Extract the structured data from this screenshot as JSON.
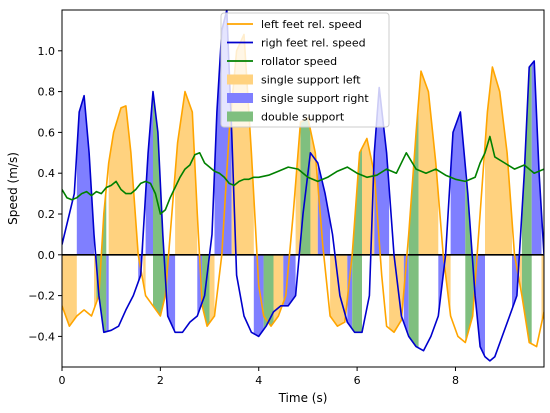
{
  "chart_data": {
    "type": "line",
    "xlabel": "Time (s)",
    "ylabel": "Speed (m/s)",
    "xlim": [
      0,
      9.8
    ],
    "ylim": [
      -0.55,
      1.2
    ],
    "xticks": [
      0,
      2,
      4,
      6,
      8
    ],
    "yticks": [
      -0.4,
      -0.2,
      0.0,
      0.2,
      0.4,
      0.6,
      0.8,
      1.0
    ],
    "xtick_labels": [
      "0",
      "2",
      "4",
      "6",
      "8"
    ],
    "ytick_labels": [
      "−0.4",
      "−0.2",
      "0.0",
      "0.2",
      "0.4",
      "0.6",
      "0.8",
      "1.0"
    ],
    "grid": false,
    "legend_position": "top-center",
    "zero_line": 0.0,
    "colors": {
      "left": "#ffa500",
      "right": "#0000cd",
      "rollator": "#008000",
      "single_left_fill": "#ffd27f",
      "single_right_fill": "#7f7fff",
      "double_fill": "#7fbf7f"
    },
    "series": [
      {
        "name": "left feet rel. speed",
        "x": [
          0.0,
          0.15,
          0.3,
          0.45,
          0.6,
          0.75,
          0.85,
          0.95,
          1.05,
          1.2,
          1.3,
          1.4,
          1.55,
          1.7,
          1.85,
          2.0,
          2.1,
          2.2,
          2.35,
          2.5,
          2.65,
          2.75,
          2.85,
          2.95,
          3.1,
          3.25,
          3.4,
          3.55,
          3.7,
          3.85,
          4.0,
          4.1,
          4.25,
          4.4,
          4.55,
          4.7,
          4.85,
          5.0,
          5.15,
          5.3,
          5.45,
          5.6,
          5.75,
          5.9,
          6.05,
          6.2,
          6.35,
          6.5,
          6.6,
          6.75,
          6.9,
          7.05,
          7.2,
          7.3,
          7.45,
          7.6,
          7.75,
          7.9,
          8.05,
          8.2,
          8.35,
          8.5,
          8.65,
          8.75,
          8.9,
          9.05,
          9.2,
          9.35,
          9.5,
          9.65,
          9.8
        ],
        "y": [
          -0.25,
          -0.35,
          -0.3,
          -0.27,
          -0.3,
          -0.2,
          0.2,
          0.45,
          0.6,
          0.72,
          0.73,
          0.5,
          0.0,
          -0.2,
          -0.25,
          -0.3,
          -0.2,
          0.1,
          0.55,
          0.8,
          0.7,
          0.2,
          -0.25,
          -0.35,
          -0.3,
          0.0,
          0.6,
          1.0,
          1.08,
          0.5,
          -0.15,
          -0.3,
          -0.35,
          -0.3,
          -0.2,
          0.2,
          0.65,
          0.67,
          0.5,
          0.05,
          -0.3,
          -0.35,
          -0.33,
          0.0,
          0.5,
          0.57,
          0.4,
          -0.1,
          -0.35,
          -0.38,
          -0.32,
          0.1,
          0.6,
          0.9,
          0.8,
          0.45,
          0.0,
          -0.3,
          -0.4,
          -0.43,
          -0.3,
          0.2,
          0.7,
          0.92,
          0.8,
          0.5,
          0.0,
          -0.2,
          -0.43,
          -0.45,
          -0.28
        ]
      },
      {
        "name": "righ feet rel. speed",
        "x": [
          0.0,
          0.1,
          0.25,
          0.35,
          0.45,
          0.55,
          0.65,
          0.75,
          0.85,
          1.0,
          1.15,
          1.3,
          1.45,
          1.6,
          1.75,
          1.85,
          1.95,
          2.05,
          2.15,
          2.3,
          2.45,
          2.6,
          2.75,
          2.9,
          3.05,
          3.15,
          3.25,
          3.35,
          3.45,
          3.55,
          3.7,
          3.85,
          4.0,
          4.15,
          4.3,
          4.45,
          4.6,
          4.75,
          4.9,
          5.05,
          5.2,
          5.35,
          5.5,
          5.65,
          5.8,
          5.95,
          6.1,
          6.25,
          6.35,
          6.45,
          6.6,
          6.75,
          6.9,
          7.05,
          7.2,
          7.35,
          7.5,
          7.65,
          7.8,
          7.95,
          8.1,
          8.25,
          8.4,
          8.5,
          8.6,
          8.7,
          8.8,
          8.95,
          9.1,
          9.25,
          9.4,
          9.5,
          9.6,
          9.7,
          9.8
        ],
        "y": [
          0.05,
          0.15,
          0.3,
          0.7,
          0.78,
          0.5,
          0.1,
          -0.2,
          -0.38,
          -0.37,
          -0.35,
          -0.27,
          -0.2,
          -0.1,
          0.5,
          0.8,
          0.6,
          0.1,
          -0.3,
          -0.38,
          -0.38,
          -0.33,
          -0.3,
          -0.2,
          0.1,
          0.7,
          1.1,
          1.2,
          0.6,
          -0.1,
          -0.3,
          -0.38,
          -0.4,
          -0.35,
          -0.28,
          -0.25,
          -0.25,
          -0.2,
          0.2,
          0.5,
          0.45,
          0.3,
          0.1,
          -0.2,
          -0.33,
          -0.38,
          -0.38,
          -0.2,
          0.5,
          0.82,
          0.5,
          0.0,
          -0.3,
          -0.4,
          -0.45,
          -0.47,
          -0.4,
          -0.3,
          0.0,
          0.6,
          0.7,
          0.3,
          -0.2,
          -0.45,
          -0.5,
          -0.52,
          -0.5,
          -0.4,
          -0.3,
          -0.2,
          0.4,
          0.92,
          0.95,
          0.4,
          0.0
        ]
      },
      {
        "name": "rollator speed",
        "x": [
          0.0,
          0.1,
          0.2,
          0.3,
          0.4,
          0.5,
          0.6,
          0.7,
          0.8,
          0.9,
          1.0,
          1.1,
          1.2,
          1.3,
          1.4,
          1.5,
          1.6,
          1.7,
          1.8,
          1.9,
          2.0,
          2.1,
          2.2,
          2.3,
          2.4,
          2.5,
          2.6,
          2.7,
          2.8,
          2.9,
          3.0,
          3.1,
          3.2,
          3.3,
          3.4,
          3.5,
          3.6,
          3.7,
          3.8,
          3.9,
          4.0,
          4.2,
          4.4,
          4.6,
          4.8,
          5.0,
          5.2,
          5.4,
          5.6,
          5.8,
          6.0,
          6.2,
          6.4,
          6.6,
          6.8,
          7.0,
          7.2,
          7.4,
          7.6,
          7.8,
          8.0,
          8.2,
          8.4,
          8.5,
          8.6,
          8.7,
          8.8,
          9.0,
          9.2,
          9.4,
          9.6,
          9.8
        ],
        "y": [
          0.32,
          0.28,
          0.27,
          0.28,
          0.3,
          0.31,
          0.29,
          0.31,
          0.3,
          0.33,
          0.34,
          0.36,
          0.32,
          0.3,
          0.3,
          0.32,
          0.35,
          0.36,
          0.35,
          0.3,
          0.2,
          0.22,
          0.28,
          0.33,
          0.38,
          0.42,
          0.44,
          0.49,
          0.5,
          0.45,
          0.43,
          0.41,
          0.4,
          0.38,
          0.35,
          0.34,
          0.36,
          0.37,
          0.37,
          0.38,
          0.38,
          0.39,
          0.41,
          0.43,
          0.42,
          0.38,
          0.36,
          0.38,
          0.41,
          0.43,
          0.4,
          0.38,
          0.39,
          0.42,
          0.4,
          0.5,
          0.42,
          0.4,
          0.42,
          0.39,
          0.37,
          0.36,
          0.38,
          0.45,
          0.5,
          0.58,
          0.48,
          0.45,
          0.42,
          0.44,
          0.4,
          0.42
        ]
      }
    ],
    "fill_series": [
      "single support left",
      "single support right",
      "double support"
    ],
    "double_support_intervals": [
      [
        0.7,
        0.85
      ],
      [
        1.85,
        2.1
      ],
      [
        2.85,
        2.95
      ],
      [
        4.1,
        4.25
      ],
      [
        4.85,
        5.0
      ],
      [
        5.9,
        6.05
      ],
      [
        7.05,
        7.2
      ],
      [
        8.2,
        8.35
      ],
      [
        9.35,
        9.5
      ]
    ]
  }
}
